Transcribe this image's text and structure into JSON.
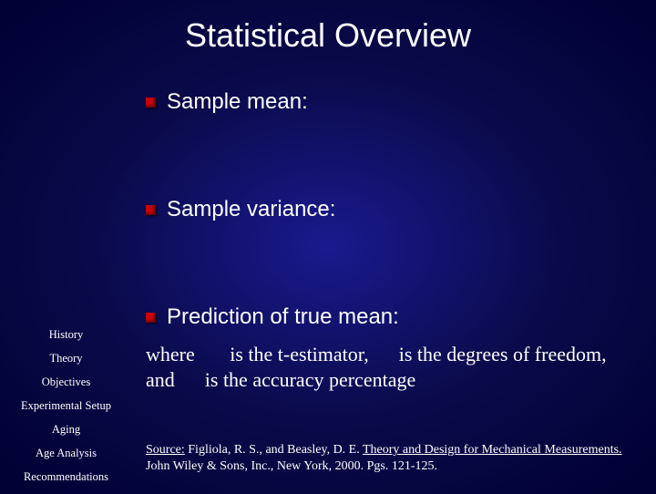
{
  "title": "Statistical Overview",
  "bullets": [
    {
      "label": "Sample mean:"
    },
    {
      "label": "Sample variance:"
    },
    {
      "label": "Prediction of true mean:"
    }
  ],
  "sidebar": {
    "items": [
      {
        "label": "History"
      },
      {
        "label": "Theory"
      },
      {
        "label": "Objectives"
      },
      {
        "label": "Experimental Setup"
      },
      {
        "label": "Aging"
      },
      {
        "label": "Age Analysis"
      },
      {
        "label": "Recommendations"
      }
    ]
  },
  "description": {
    "part1": "where ",
    "part2": " is the t-estimator, ",
    "part3": " is the degrees of freedom, and ",
    "part4": " is the accuracy percentage"
  },
  "source": {
    "label": "Source:",
    "authors": "  Figliola, R. S., and Beasley, D. E.  ",
    "book": "Theory and Design for Mechanical Measurements.",
    "rest": "  John Wiley & Sons, Inc., New York, 2000.  Pgs. 121-125."
  },
  "colors": {
    "bullet": "#cc0000",
    "text": "#ffffff",
    "bg_center": "#1a1a8e",
    "bg_edge": "#000033"
  },
  "typography": {
    "title_fontsize": 36,
    "bullet_fontsize": 24,
    "desc_fontsize": 22,
    "sidebar_fontsize": 12.5,
    "source_fontsize": 14,
    "title_font": "Arial",
    "body_font": "Times New Roman"
  }
}
